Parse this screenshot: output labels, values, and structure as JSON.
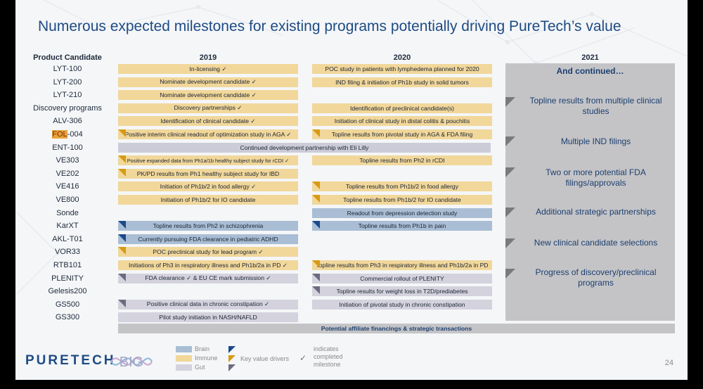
{
  "title": "Numerous expected milestones for existing programs potentially driving PureTech’s value",
  "headers": {
    "product": "Product Candidate",
    "y2019": "2019",
    "y2020": "2020",
    "y2021": "2021"
  },
  "candidates": [
    {
      "name": "LYT-100",
      "b2019": {
        "text": "In-licensing ✓",
        "cat": "immune",
        "kv": false
      },
      "b2020": {
        "text": "POC study in patients with lymphedema planned for 2020",
        "cat": "immune",
        "kv": false
      }
    },
    {
      "name": "LYT-200",
      "b2019": {
        "text": "Nominate development candidate ✓",
        "cat": "immune",
        "kv": false
      },
      "b2020": {
        "text": "IND filing & initiation of Ph1b study in solid tumors",
        "cat": "immune",
        "kv": false
      }
    },
    {
      "name": "LYT-210",
      "b2019": {
        "text": "Nominate development candidate ✓",
        "cat": "immune",
        "kv": false
      }
    },
    {
      "name": "Discovery programs",
      "b2019": {
        "text": "Discovery partnerships ✓",
        "cat": "immune",
        "kv": false
      },
      "b2020": {
        "text": "Identification of preclinical candidate(s)",
        "cat": "immune",
        "kv": false
      }
    },
    {
      "name": "ALV-306",
      "b2019": {
        "text": "Identification of clinical candidate ✓",
        "cat": "immune",
        "kv": false
      },
      "b2020": {
        "text": "Initiation of clinical study in distal colitis & pouchitis",
        "cat": "immune",
        "kv": false
      }
    },
    {
      "name": "FOL-004",
      "b2019": {
        "text": "Positive interim clinical readout of optimization study in AGA ✓",
        "cat": "immune",
        "kv": true
      },
      "b2020": {
        "text": "Topline results from pivotal study in AGA & FDA filing",
        "cat": "immune",
        "kv": true
      }
    },
    {
      "name": "ENT-100",
      "full": "Continued development partnership with Eli Lilly"
    },
    {
      "name": "VE303",
      "b2019": {
        "text": "Positive expanded data from Ph1a/1b healthy subject study for rCDI ✓",
        "cat": "immune",
        "kv": true,
        "small": true
      },
      "b2020": {
        "text": "Topline results from Ph2 in rCDI",
        "cat": "immune",
        "kv": false
      }
    },
    {
      "name": "VE202",
      "b2019": {
        "text": "PK/PD results from Ph1 healthy subject study for IBD",
        "cat": "immune",
        "kv": true
      }
    },
    {
      "name": "VE416",
      "b2019": {
        "text": "Initiation of Ph1b/2 in food allergy ✓",
        "cat": "immune",
        "kv": false
      },
      "b2020": {
        "text": "Topline results from Ph1b/2 in food allergy",
        "cat": "immune",
        "kv": true
      }
    },
    {
      "name": "VE800",
      "b2019": {
        "text": "Initiation of Ph1b/2 for IO candidate",
        "cat": "immune",
        "kv": false
      },
      "b2020": {
        "text": "Topline results from Ph1b/2 for IO candidate",
        "cat": "immune",
        "kv": true
      }
    },
    {
      "name": "Sonde",
      "b2020": {
        "text": "Readout from depression detection study",
        "cat": "brain",
        "kv": false
      }
    },
    {
      "name": "KarXT",
      "b2019": {
        "text": "Topline results from Ph2 in schizophrenia",
        "cat": "brain",
        "kv": true
      },
      "b2020": {
        "text": "Topline results from Ph1b in pain",
        "cat": "brain",
        "kv": true
      }
    },
    {
      "name": "AKL-T01",
      "b2019": {
        "text": "Currently pursuing FDA clearance in pediatric ADHD",
        "cat": "brain",
        "kv": true
      }
    },
    {
      "name": "VOR33",
      "b2019": {
        "text": "POC preclinical study for lead program ✓",
        "cat": "immune",
        "kv": true
      }
    },
    {
      "name": "RTB101",
      "b2019": {
        "text": "Initiations of Ph3 in respiratory illness and Ph1b/2a in PD ✓",
        "cat": "immune",
        "kv": false
      },
      "b2020": {
        "text": "Topline results from Ph3 in respiratory illness and Ph1b/2a in PD",
        "cat": "immune",
        "kv": true
      }
    },
    {
      "name": "PLENITY",
      "b2019": {
        "text": "FDA clearance ✓ & EU CE mark submission ✓",
        "cat": "gut",
        "kv": true
      },
      "b2020": {
        "text": "Commercial rollout of PLENITY",
        "cat": "gut",
        "kv": true
      }
    },
    {
      "name": "Gelesis200",
      "b2020": {
        "text": "Topline results for weight loss in T2D/prediabetes",
        "cat": "gut",
        "kv": true
      }
    },
    {
      "name": "GS500",
      "b2019": {
        "text": "Positive clinical data in chronic constipation ✓",
        "cat": "gut",
        "kv": true
      },
      "b2020": {
        "text": "Initiation of pivotal study in chronic constipation",
        "cat": "gut",
        "kv": false
      }
    },
    {
      "name": "GS300",
      "b2019": {
        "text": "Pilot study initiation in NASH/NAFLD",
        "cat": "gut",
        "kv": false
      }
    }
  ],
  "panel2021": {
    "heading": "And continued…",
    "items": [
      "Topline results from multiple clinical studies",
      "Multiple IND filings",
      "Two or more potential FDA filings/approvals",
      "Additional strategic partnerships",
      "New clinical candidate selections",
      "Progress of discovery/preclinical programs"
    ]
  },
  "affiliate": "Potential affiliate financings & strategic transactions",
  "legend": {
    "brain": "Brain",
    "immune": "Immune",
    "gut": "Gut",
    "key_value": "Key value drivers",
    "check_symbol": "✓",
    "check_text": "indicates completed milestone"
  },
  "logo": {
    "text": "PURETECH",
    "big": "BIG"
  },
  "page_number": "24",
  "colors": {
    "title": "#1e4b84",
    "immune": "#f1d79a",
    "brain": "#a9bed4",
    "gut": "#d4d2dd",
    "kv_immune": "#d89a14",
    "kv_brain": "#1c4a8a",
    "kv_gut": "#6e6a82",
    "panel": "#c4c4c7"
  }
}
